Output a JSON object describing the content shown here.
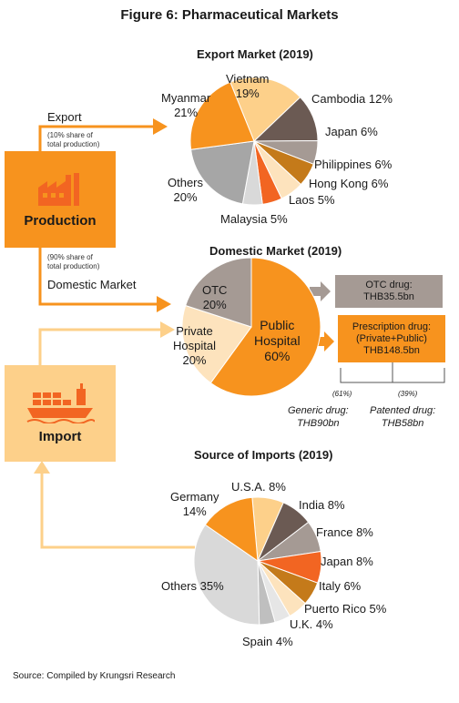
{
  "title": "Figure 6: Pharmaceutical Markets",
  "export_pie": {
    "title": "Export Market (2019)",
    "slices": [
      {
        "label": "Vietnam",
        "value": 19,
        "pct": "19%",
        "color": "#fdd08a"
      },
      {
        "label": "Cambodia",
        "value": 12,
        "pct": "12%",
        "color": "#6b5a53"
      },
      {
        "label": "Japan",
        "value": 6,
        "pct": "6%",
        "color": "#a59a94"
      },
      {
        "label": "Philippines",
        "value": 6,
        "pct": "6%",
        "color": "#c47a1a"
      },
      {
        "label": "Hong Kong",
        "value": 6,
        "pct": "6%",
        "color": "#fde3bd"
      },
      {
        "label": "Laos",
        "value": 5,
        "pct": "5%",
        "color": "#f26522"
      },
      {
        "label": "Malaysia",
        "value": 5,
        "pct": "5%",
        "color": "#d9d9d9"
      },
      {
        "label": "Others",
        "value": 20,
        "pct": "20%",
        "color": "#a6a6a6"
      },
      {
        "label": "Myanmar",
        "value": 21,
        "pct": "21%",
        "color": "#f7931e"
      }
    ],
    "labels": {
      "vietnam": "Vietnam",
      "vietnam_pct": "19%",
      "myanmar": "Myanmar",
      "myanmar_pct": "21%",
      "cambodia": "Cambodia 12%",
      "japan": "Japan 6%",
      "philippines": "Philippines 6%",
      "hongkong": "Hong Kong 6%",
      "laos": "Laos 5%",
      "malaysia": "Malaysia 5%",
      "others": "Others",
      "others_pct": "20%"
    }
  },
  "domestic_pie": {
    "title": "Domestic Market (2019)",
    "slices": [
      {
        "label": "Public Hospital",
        "value": 60,
        "color": "#f7931e"
      },
      {
        "label": "Private Hospital",
        "value": 20,
        "color": "#fde3bd"
      },
      {
        "label": "OTC",
        "value": 20,
        "color": "#a59a94"
      }
    ],
    "labels": {
      "otc": "OTC",
      "otc_pct": "20%",
      "private_1": "Private",
      "private_2": "Hospital",
      "private_pct": "20%",
      "public_1": "Public",
      "public_2": "Hospital",
      "public_pct": "60%"
    }
  },
  "imports_pie": {
    "title": "Source of Imports (2019)",
    "slices": [
      {
        "label": "U.S.A.",
        "value": 8,
        "color": "#fdd08a"
      },
      {
        "label": "India",
        "value": 8,
        "color": "#6b5a53"
      },
      {
        "label": "France",
        "value": 8,
        "color": "#a59a94"
      },
      {
        "label": "Japan",
        "value": 8,
        "color": "#f26522"
      },
      {
        "label": "Italy",
        "value": 6,
        "color": "#c47a1a"
      },
      {
        "label": "Puerto Rico",
        "value": 5,
        "color": "#fde3bd"
      },
      {
        "label": "U.K.",
        "value": 4,
        "color": "#e6e6e6"
      },
      {
        "label": "Spain",
        "value": 4,
        "color": "#bfbfbf"
      },
      {
        "label": "Others",
        "value": 35,
        "color": "#d9d9d9"
      },
      {
        "label": "Germany",
        "value": 14,
        "color": "#f7931e"
      }
    ],
    "labels": {
      "usa": "U.S.A. 8%",
      "india": "India  8%",
      "france": "France 8%",
      "japan": "Japan 8%",
      "italy": "Italy 6%",
      "puertorico": "Puerto Rico 5%",
      "uk": "U.K. 4%",
      "spain": "Spain 4%",
      "others": "Others 35%",
      "germany": "Germany",
      "germany_pct": "14%"
    }
  },
  "flow": {
    "export_label": "Export",
    "export_share_1": "(10% share of",
    "export_share_2": "total production)",
    "production_label": "Production",
    "domestic_share_1": "(90% share of",
    "domestic_share_2": "total production)",
    "domestic_label": "Domestic Market",
    "import_label": "Import",
    "otc_1": "OTC drug:",
    "otc_2": "THB35.5bn",
    "rx_1": "Prescription drug:",
    "rx_2": "(Private+Public)",
    "rx_3": "THB148.5bn",
    "generic_share": "(61%)",
    "patented_share": "(39%)",
    "generic_1": "Generic drug:",
    "generic_2": "THB90bn",
    "patented_1": "Patented drug:",
    "patented_2": "THB58bn"
  },
  "source": "Source: Compiled by Krungsri Research",
  "colors": {
    "orange": "#f7931e",
    "light_orange": "#fdd08a",
    "taupe": "#a59a94",
    "brown": "#6b5a53"
  }
}
